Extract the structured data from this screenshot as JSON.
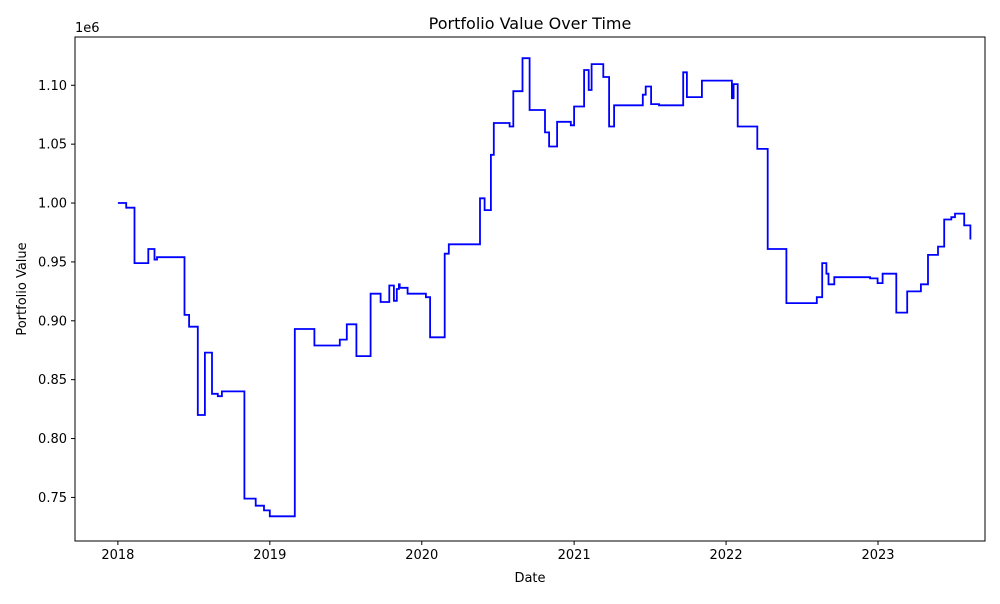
{
  "chart_data": {
    "type": "line",
    "title": "Portfolio Value Over Time",
    "xlabel": "Date",
    "ylabel": "Portfolio Value",
    "y_scale_label": "1e6",
    "x_axis_type": "date",
    "xlim": [
      "2017-09-20",
      "2023-09-15"
    ],
    "ylim": [
      0.713,
      1.141
    ],
    "grid": false,
    "legend": "none",
    "x_ticks": [
      {
        "value": "2018-01-01",
        "label": "2018"
      },
      {
        "value": "2019-01-01",
        "label": "2019"
      },
      {
        "value": "2020-01-01",
        "label": "2020"
      },
      {
        "value": "2021-01-01",
        "label": "2021"
      },
      {
        "value": "2022-01-01",
        "label": "2022"
      },
      {
        "value": "2023-01-01",
        "label": "2023"
      }
    ],
    "y_ticks": [
      {
        "value": 0.75,
        "label": "0.75"
      },
      {
        "value": 0.8,
        "label": "0.80"
      },
      {
        "value": 0.85,
        "label": "0.85"
      },
      {
        "value": 0.9,
        "label": "0.90"
      },
      {
        "value": 0.95,
        "label": "0.95"
      },
      {
        "value": 1.0,
        "label": "1.00"
      },
      {
        "value": 1.05,
        "label": "1.05"
      },
      {
        "value": 1.1,
        "label": "1.10"
      }
    ],
    "series": [
      {
        "color": "#0000ff",
        "step": "post",
        "points": [
          [
            "2018-01-01",
            1.0
          ],
          [
            "2018-01-21",
            0.996
          ],
          [
            "2018-02-10",
            0.949
          ],
          [
            "2018-03-15",
            0.961
          ],
          [
            "2018-03-30",
            0.952
          ],
          [
            "2018-04-05",
            0.954
          ],
          [
            "2018-06-10",
            0.905
          ],
          [
            "2018-06-21",
            0.895
          ],
          [
            "2018-07-12",
            0.82
          ],
          [
            "2018-07-29",
            0.873
          ],
          [
            "2018-08-15",
            0.838
          ],
          [
            "2018-08-29",
            0.836
          ],
          [
            "2018-09-08",
            0.84
          ],
          [
            "2018-11-01",
            0.749
          ],
          [
            "2018-11-28",
            0.743
          ],
          [
            "2018-12-18",
            0.739
          ],
          [
            "2019-01-01",
            0.734
          ],
          [
            "2019-03-02",
            0.893
          ],
          [
            "2019-04-18",
            0.879
          ],
          [
            "2019-06-18",
            0.884
          ],
          [
            "2019-07-05",
            0.897
          ],
          [
            "2019-07-28",
            0.87
          ],
          [
            "2019-08-31",
            0.923
          ],
          [
            "2019-09-24",
            0.916
          ],
          [
            "2019-10-15",
            0.93
          ],
          [
            "2019-10-26",
            0.917
          ],
          [
            "2019-11-02",
            0.927
          ],
          [
            "2019-11-07",
            0.931
          ],
          [
            "2019-11-09",
            0.928
          ],
          [
            "2019-11-28",
            0.923
          ],
          [
            "2020-01-11",
            0.92
          ],
          [
            "2020-01-21",
            0.886
          ],
          [
            "2020-02-25",
            0.957
          ],
          [
            "2020-03-06",
            0.965
          ],
          [
            "2020-05-20",
            1.004
          ],
          [
            "2020-05-31",
            0.994
          ],
          [
            "2020-06-15",
            1.041
          ],
          [
            "2020-06-22",
            1.068
          ],
          [
            "2020-07-30",
            1.065
          ],
          [
            "2020-08-08",
            1.095
          ],
          [
            "2020-08-30",
            1.123
          ],
          [
            "2020-09-16",
            1.079
          ],
          [
            "2020-10-23",
            1.06
          ],
          [
            "2020-11-02",
            1.048
          ],
          [
            "2020-11-21",
            1.069
          ],
          [
            "2020-12-24",
            1.066
          ],
          [
            "2021-01-01",
            1.082
          ],
          [
            "2021-01-25",
            1.113
          ],
          [
            "2021-02-05",
            1.096
          ],
          [
            "2021-02-12",
            1.118
          ],
          [
            "2021-03-12",
            1.107
          ],
          [
            "2021-03-26",
            1.065
          ],
          [
            "2021-04-07",
            1.083
          ],
          [
            "2021-06-15",
            1.092
          ],
          [
            "2021-06-22",
            1.099
          ],
          [
            "2021-07-05",
            1.084
          ],
          [
            "2021-07-24",
            1.083
          ],
          [
            "2021-09-20",
            1.111
          ],
          [
            "2021-09-29",
            1.09
          ],
          [
            "2021-11-04",
            1.104
          ],
          [
            "2022-01-15",
            1.089
          ],
          [
            "2022-01-19",
            1.101
          ],
          [
            "2022-01-29",
            1.065
          ],
          [
            "2022-03-17",
            1.046
          ],
          [
            "2022-04-11",
            0.961
          ],
          [
            "2022-05-26",
            0.915
          ],
          [
            "2022-08-07",
            0.92
          ],
          [
            "2022-08-20",
            0.949
          ],
          [
            "2022-08-30",
            0.94
          ],
          [
            "2022-09-04",
            0.931
          ],
          [
            "2022-09-18",
            0.937
          ],
          [
            "2022-12-13",
            0.936
          ],
          [
            "2022-12-31",
            0.932
          ],
          [
            "2023-01-12",
            0.94
          ],
          [
            "2023-02-14",
            0.907
          ],
          [
            "2023-03-12",
            0.925
          ],
          [
            "2023-04-14",
            0.931
          ],
          [
            "2023-05-01",
            0.956
          ],
          [
            "2023-05-25",
            0.963
          ],
          [
            "2023-06-09",
            0.986
          ],
          [
            "2023-06-26",
            0.988
          ],
          [
            "2023-07-05",
            0.991
          ],
          [
            "2023-07-27",
            0.981
          ],
          [
            "2023-08-11",
            0.969
          ]
        ]
      }
    ]
  }
}
